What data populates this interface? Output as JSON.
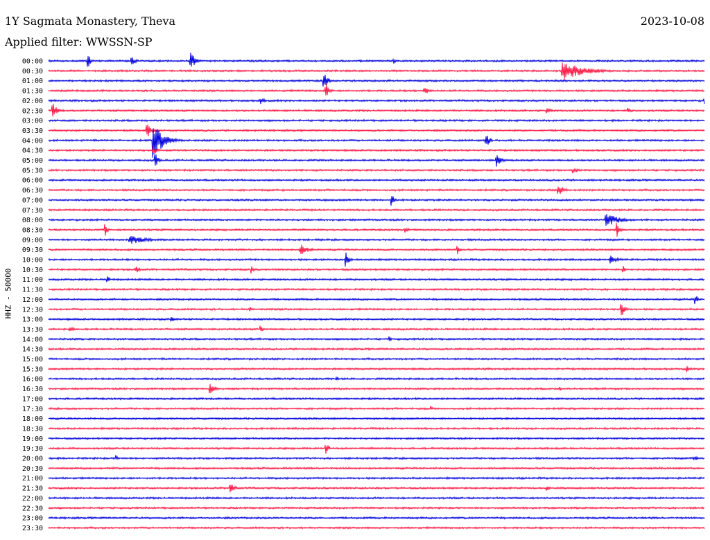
{
  "header": {
    "station": "1Y Sagmata Monastery, Theva",
    "date": "2023-10-08",
    "filter": "Applied filter: WWSSN-SP",
    "channel_label": "HHZ - 50000"
  },
  "colors": {
    "even_rows": "#0000dd",
    "odd_rows": "#ff1744"
  },
  "chart_data": {
    "type": "line",
    "title": "1Y Sagmata Monastery, Theva",
    "subtitle": "Applied filter: WWSSN-SP",
    "ylabel": "HHZ - 50000",
    "row_labels": [
      "00:00",
      "00:30",
      "01:00",
      "01:30",
      "02:00",
      "02:30",
      "03:00",
      "03:30",
      "04:00",
      "04:30",
      "05:00",
      "05:30",
      "06:00",
      "06:30",
      "07:00",
      "07:30",
      "08:00",
      "08:30",
      "09:00",
      "09:30",
      "10:00",
      "10:30",
      "11:00",
      "11:30",
      "12:00",
      "12:30",
      "13:00",
      "13:30",
      "14:00",
      "14:30",
      "15:00",
      "15:30",
      "16:00",
      "16:30",
      "17:00",
      "17:30",
      "18:00",
      "18:30",
      "19:00",
      "19:30",
      "20:00",
      "20:30",
      "21:00",
      "21:30",
      "22:00",
      "22:30",
      "23:00",
      "23:30"
    ],
    "row_minutes": 30,
    "grid": false,
    "events": [
      {
        "row": 0,
        "minute": 1.8,
        "amp": 14,
        "dur": 0.2
      },
      {
        "row": 0,
        "minute": 3.8,
        "amp": 6,
        "dur": 0.5
      },
      {
        "row": 0,
        "minute": 6.5,
        "amp": 16,
        "dur": 0.4
      },
      {
        "row": 0,
        "minute": 15.8,
        "amp": 4,
        "dur": 0.2
      },
      {
        "row": 1,
        "minute": 23.5,
        "amp": 14,
        "dur": 2.2
      },
      {
        "row": 2,
        "minute": 12.6,
        "amp": 18,
        "dur": 0.3
      },
      {
        "row": 3,
        "minute": 12.7,
        "amp": 12,
        "dur": 0.3
      },
      {
        "row": 3,
        "minute": 17.2,
        "amp": 6,
        "dur": 0.6
      },
      {
        "row": 4,
        "minute": 9.7,
        "amp": 6,
        "dur": 0.4
      },
      {
        "row": 4,
        "minute": 30.0,
        "amp": 8,
        "dur": 0.1
      },
      {
        "row": 5,
        "minute": 0.2,
        "amp": 12,
        "dur": 0.4
      },
      {
        "row": 5,
        "minute": 22.8,
        "amp": 5,
        "dur": 0.4
      },
      {
        "row": 5,
        "minute": 26.5,
        "amp": 4,
        "dur": 0.4
      },
      {
        "row": 7,
        "minute": 4.5,
        "amp": 12,
        "dur": 0.5
      },
      {
        "row": 8,
        "minute": 4.8,
        "amp": 26,
        "dur": 1.0
      },
      {
        "row": 8,
        "minute": 20.0,
        "amp": 14,
        "dur": 0.3
      },
      {
        "row": 9,
        "minute": 4.8,
        "amp": 8,
        "dur": 0.4
      },
      {
        "row": 10,
        "minute": 20.5,
        "amp": 10,
        "dur": 0.5
      },
      {
        "row": 10,
        "minute": 4.9,
        "amp": 10,
        "dur": 0.3
      },
      {
        "row": 11,
        "minute": 24.0,
        "amp": 5,
        "dur": 0.6
      },
      {
        "row": 13,
        "minute": 23.3,
        "amp": 8,
        "dur": 0.7
      },
      {
        "row": 14,
        "minute": 15.7,
        "amp": 14,
        "dur": 0.2
      },
      {
        "row": 16,
        "minute": 25.5,
        "amp": 10,
        "dur": 1.4
      },
      {
        "row": 17,
        "minute": 2.6,
        "amp": 10,
        "dur": 0.2
      },
      {
        "row": 17,
        "minute": 26.0,
        "amp": 12,
        "dur": 0.3
      },
      {
        "row": 17,
        "minute": 16.3,
        "amp": 4,
        "dur": 0.5
      },
      {
        "row": 18,
        "minute": 3.7,
        "amp": 7,
        "dur": 1.8
      },
      {
        "row": 19,
        "minute": 11.5,
        "amp": 9,
        "dur": 0.8
      },
      {
        "row": 19,
        "minute": 18.7,
        "amp": 9,
        "dur": 0.2
      },
      {
        "row": 20,
        "minute": 13.6,
        "amp": 12,
        "dur": 0.3
      },
      {
        "row": 20,
        "minute": 25.7,
        "amp": 6,
        "dur": 0.8
      },
      {
        "row": 21,
        "minute": 4.0,
        "amp": 6,
        "dur": 0.4
      },
      {
        "row": 21,
        "minute": 9.3,
        "amp": 6,
        "dur": 0.2
      },
      {
        "row": 21,
        "minute": 26.3,
        "amp": 6,
        "dur": 0.2
      },
      {
        "row": 22,
        "minute": 2.7,
        "amp": 7,
        "dur": 0.2
      },
      {
        "row": 24,
        "minute": 29.6,
        "amp": 8,
        "dur": 0.2
      },
      {
        "row": 25,
        "minute": 26.2,
        "amp": 16,
        "dur": 0.3
      },
      {
        "row": 25,
        "minute": 9.2,
        "amp": 4,
        "dur": 0.3
      },
      {
        "row": 26,
        "minute": 5.6,
        "amp": 4,
        "dur": 0.6
      },
      {
        "row": 27,
        "minute": 1.0,
        "amp": 3,
        "dur": 0.8
      },
      {
        "row": 27,
        "minute": 9.7,
        "amp": 5,
        "dur": 0.3
      },
      {
        "row": 28,
        "minute": 15.6,
        "amp": 4,
        "dur": 0.2
      },
      {
        "row": 31,
        "minute": 29.2,
        "amp": 5,
        "dur": 0.2
      },
      {
        "row": 32,
        "minute": 13.2,
        "amp": 4,
        "dur": 0.2
      },
      {
        "row": 33,
        "minute": 7.4,
        "amp": 8,
        "dur": 0.6
      },
      {
        "row": 33,
        "minute": 23.4,
        "amp": 3,
        "dur": 0.4
      },
      {
        "row": 35,
        "minute": 17.5,
        "amp": 4,
        "dur": 0.2
      },
      {
        "row": 39,
        "minute": 12.7,
        "amp": 8,
        "dur": 0.3
      },
      {
        "row": 40,
        "minute": 3.1,
        "amp": 5,
        "dur": 0.2
      },
      {
        "row": 40,
        "minute": 29.5,
        "amp": 4,
        "dur": 0.5
      },
      {
        "row": 43,
        "minute": 8.3,
        "amp": 10,
        "dur": 0.4
      },
      {
        "row": 43,
        "minute": 22.8,
        "amp": 4,
        "dur": 0.3
      }
    ]
  }
}
